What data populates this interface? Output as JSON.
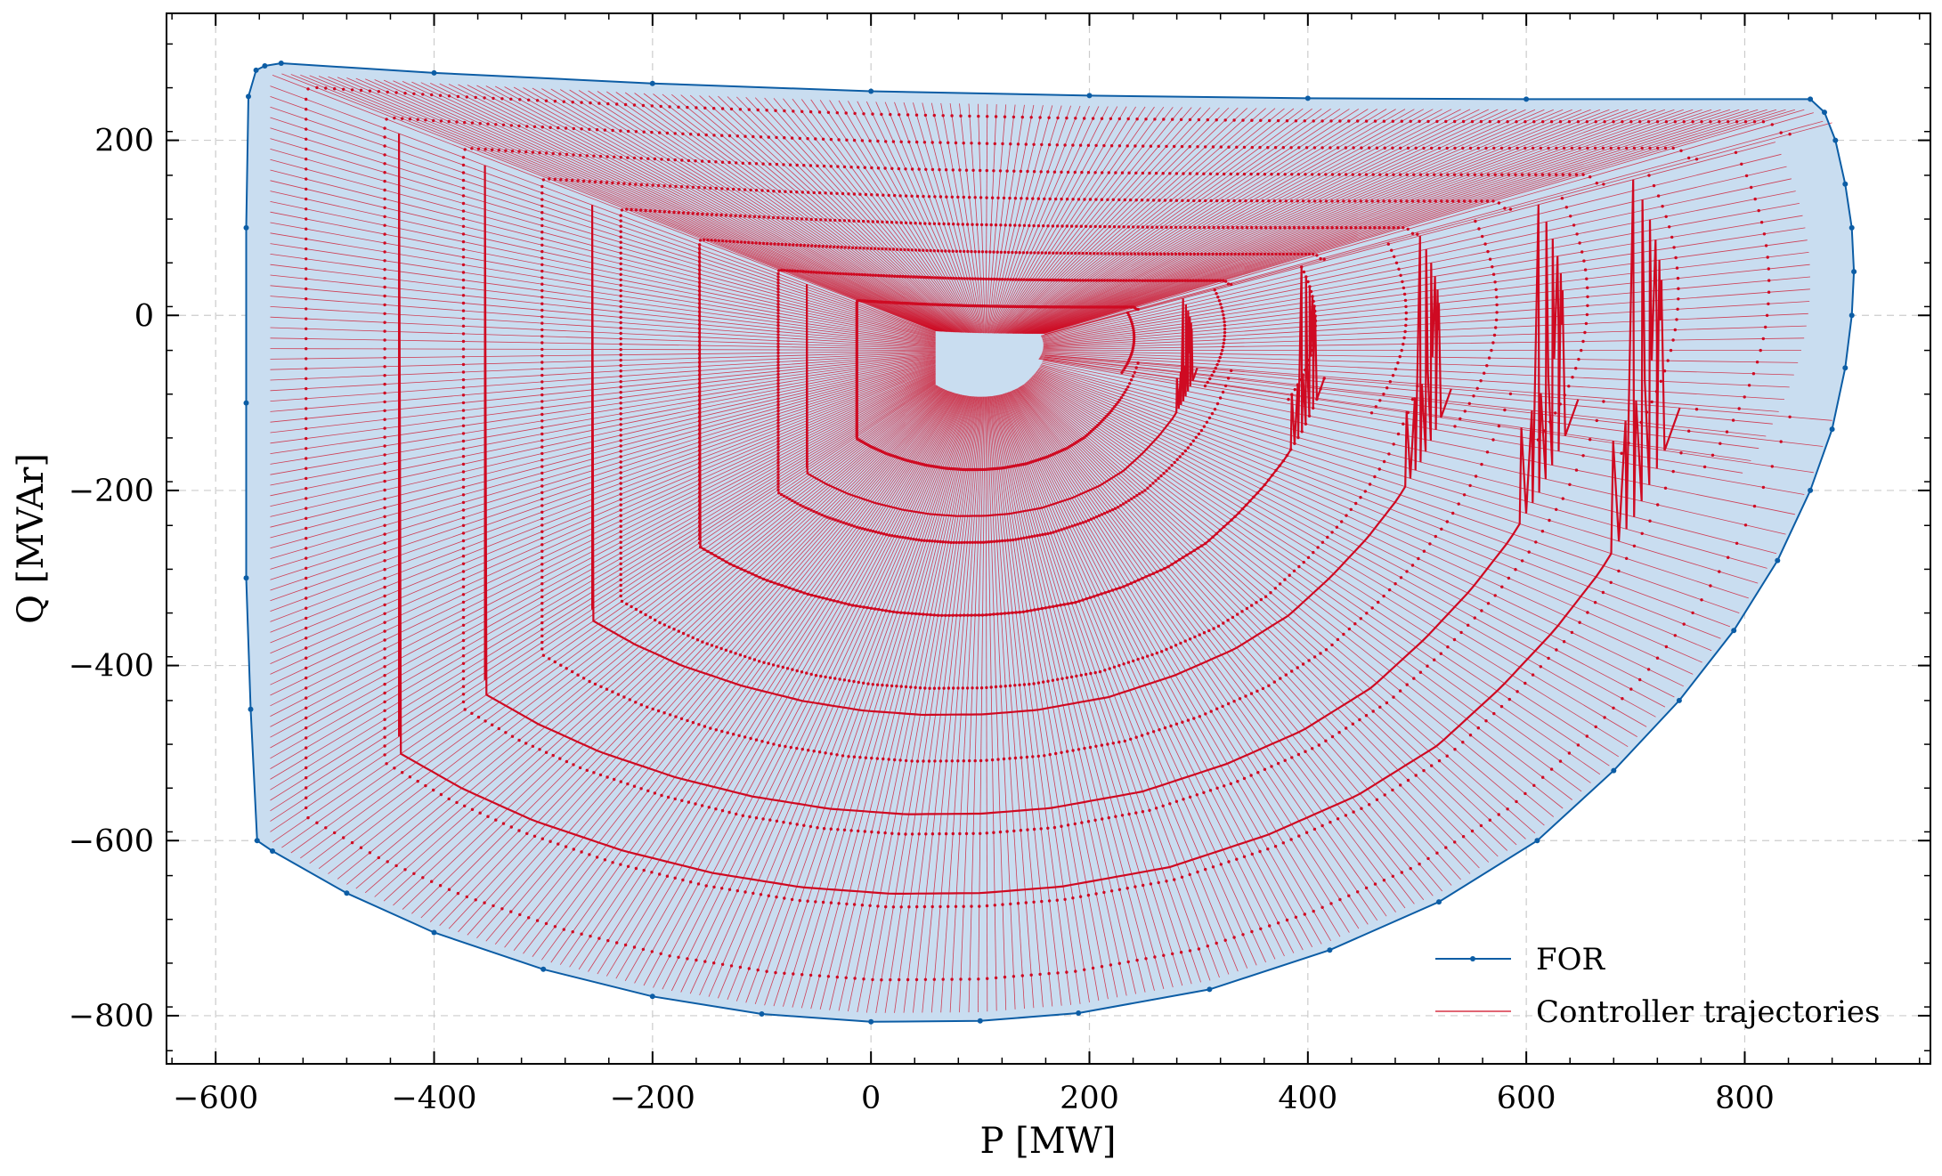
{
  "chart_data": {
    "type": "line",
    "title": "",
    "xlabel": "P [MW]",
    "ylabel": "Q [MVAr]",
    "xlim": [
      -645,
      970
    ],
    "ylim": [
      -855,
      345
    ],
    "xticks": [
      -600,
      -400,
      -200,
      0,
      200,
      400,
      600,
      800
    ],
    "yticks": [
      -800,
      -600,
      -400,
      -200,
      0,
      200
    ],
    "xtick_labels": [
      "−600",
      "−400",
      "−200",
      "0",
      "200",
      "400",
      "600",
      "800"
    ],
    "ytick_labels": [
      "−800",
      "−600",
      "−400",
      "−200",
      "0",
      "200"
    ],
    "grid": true,
    "legend_position": "bottom-right",
    "colors": {
      "for_line": "#0C5DA5",
      "for_fill": "#C9DDF0",
      "trajectories": "#CF0A22"
    },
    "series": [
      {
        "name": "FOR",
        "kind": "boundary",
        "points": [
          [
            -555,
            285
          ],
          [
            -540,
            288
          ],
          [
            -400,
            277
          ],
          [
            -200,
            265
          ],
          [
            0,
            256
          ],
          [
            200,
            251
          ],
          [
            400,
            248
          ],
          [
            600,
            247
          ],
          [
            860,
            247
          ],
          [
            873,
            232
          ],
          [
            883,
            200
          ],
          [
            892,
            150
          ],
          [
            898,
            100
          ],
          [
            900,
            50
          ],
          [
            898,
            0
          ],
          [
            892,
            -60
          ],
          [
            880,
            -130
          ],
          [
            860,
            -200
          ],
          [
            830,
            -280
          ],
          [
            790,
            -360
          ],
          [
            740,
            -440
          ],
          [
            680,
            -520
          ],
          [
            610,
            -600
          ],
          [
            520,
            -670
          ],
          [
            420,
            -725
          ],
          [
            310,
            -770
          ],
          [
            190,
            -797
          ],
          [
            100,
            -806
          ],
          [
            0,
            -807
          ],
          [
            -100,
            -798
          ],
          [
            -200,
            -778
          ],
          [
            -300,
            -747
          ],
          [
            -400,
            -705
          ],
          [
            -480,
            -660
          ],
          [
            -548,
            -612
          ],
          [
            -562,
            -600
          ],
          [
            -568,
            -450
          ],
          [
            -572,
            -300
          ],
          [
            -572,
            -100
          ],
          [
            -572,
            100
          ],
          [
            -570,
            250
          ],
          [
            -563,
            280
          ]
        ]
      },
      {
        "name": "Controller trajectories",
        "kind": "trajectories",
        "target": [
          105,
          -40
        ],
        "x_start": -548,
        "x_step": 8.5,
        "count": 170
      }
    ]
  }
}
